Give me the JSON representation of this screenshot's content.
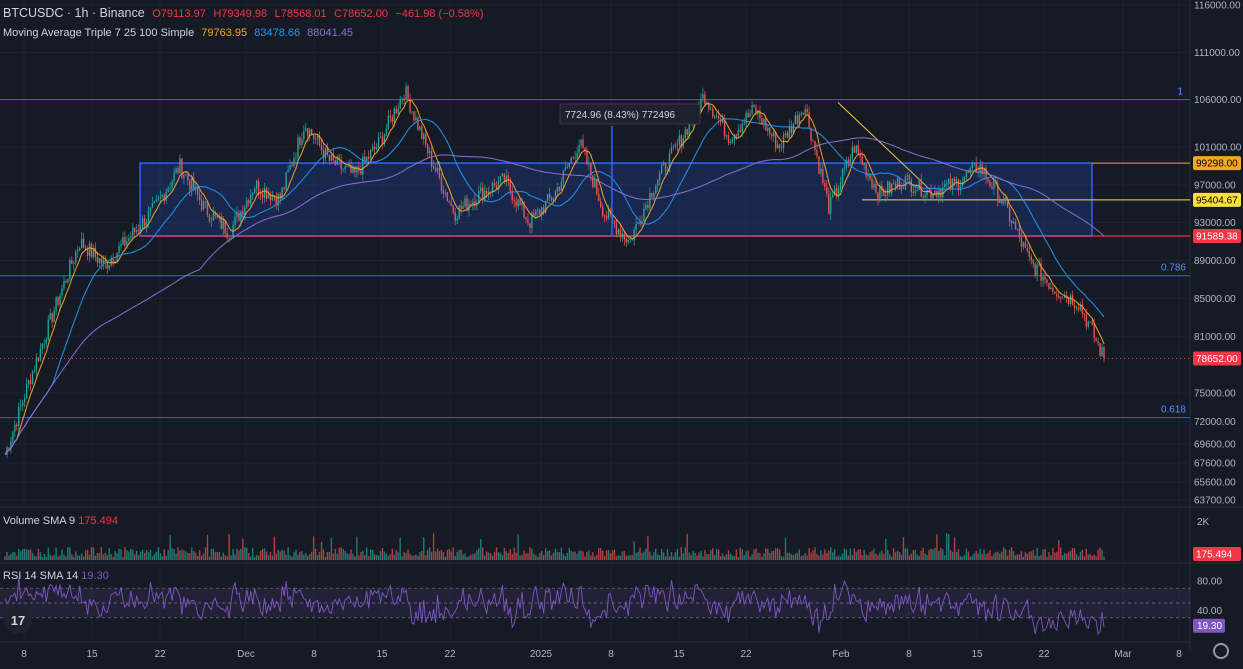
{
  "legend": {
    "symbol": "BTCUSDC · 1h · Binance",
    "open": "O79113.97",
    "high": "H79349.98",
    "low": "L78568.01",
    "close": "C78652.00",
    "change": "−461.98 (−0.58%)",
    "ma_label": "Moving Average Triple 7 25 100 Simple",
    "ma7": "79763.95",
    "ma25": "83478.66",
    "ma100": "88041.45"
  },
  "volume_pane": {
    "label": "Volume SMA 9",
    "value": "175.494",
    "axis_2k": "2K"
  },
  "rsi_pane": {
    "label": "RSI 14 SMA 14",
    "value": "19.30",
    "ticks": [
      "80.00",
      "40.00"
    ]
  },
  "colors": {
    "background": "#161a25",
    "up": "#26a69a",
    "down": "#ef5350",
    "ma7": "#f5a623",
    "ma25": "#2196f3",
    "ma100": "#8e6fd8",
    "hline": "#2962ff",
    "fib": "#2962ff",
    "rsi": "#7e57c2"
  },
  "measure_label": "7724.96 (8.43%) 772496",
  "fib_labels": {
    "l1": "1",
    "l786": "0.786",
    "l618": "0.618"
  },
  "price_badges": [
    {
      "value": "99298.00",
      "color": "#f5a623",
      "text_color": "#000"
    },
    {
      "value": "95404.67",
      "color": "#fbe03b",
      "text_color": "#000"
    },
    {
      "value": "91589.38",
      "color": "#f23645",
      "text_color": "#fff"
    },
    {
      "value": "78652.00",
      "color": "#f23645",
      "text_color": "#fff"
    }
  ],
  "volume_badge": "175.494",
  "rsi_badge": "19.30",
  "chart_data": {
    "type": "candlestick",
    "title": "BTCUSDC · 1h · Binance",
    "x_ticks": [
      "8",
      "15",
      "22",
      "Dec",
      "8",
      "15",
      "22",
      "2025",
      "8",
      "15",
      "22",
      "Feb",
      "8",
      "15",
      "22",
      "Mar",
      "8"
    ],
    "y_ticks": [
      "116000.00",
      "111000.00",
      "106000.00",
      "101000.00",
      "97000.00",
      "93000.00",
      "89000.00",
      "85000.00",
      "81000.00",
      "75000.00",
      "72000.00",
      "69600.00",
      "67600.00",
      "65600.00",
      "63700.00"
    ],
    "y_range": [
      63700,
      116000
    ],
    "horizontal_levels": [
      {
        "price": 106000,
        "label": "1"
      },
      {
        "price": 99298,
        "label": "99298.00"
      },
      {
        "price": 95404.67,
        "label": "95404.67"
      },
      {
        "price": 91589.38,
        "label": "91589.38"
      },
      {
        "price": 87400,
        "label": "0.786"
      },
      {
        "price": 72400,
        "label": "0.618"
      }
    ],
    "price_path": [
      {
        "date": "Nov 5",
        "price": 68500
      },
      {
        "date": "Nov 8",
        "price": 76500
      },
      {
        "date": "Nov 11",
        "price": 84000
      },
      {
        "date": "Nov 13",
        "price": 91000
      },
      {
        "date": "Nov 15",
        "price": 88500
      },
      {
        "date": "Nov 18",
        "price": 91500
      },
      {
        "date": "Nov 20",
        "price": 94500
      },
      {
        "date": "Nov 22",
        "price": 99000
      },
      {
        "date": "Nov 25",
        "price": 94500
      },
      {
        "date": "Nov 27",
        "price": 92000
      },
      {
        "date": "Nov 30",
        "price": 97000
      },
      {
        "date": "Dec 3",
        "price": 95500
      },
      {
        "date": "Dec 5",
        "price": 103500
      },
      {
        "date": "Dec 8",
        "price": 99500
      },
      {
        "date": "Dec 11",
        "price": 98000
      },
      {
        "date": "Dec 14",
        "price": 101500
      },
      {
        "date": "Dec 17",
        "price": 107000
      },
      {
        "date": "Dec 19",
        "price": 100000
      },
      {
        "date": "Dec 20",
        "price": 94000
      },
      {
        "date": "Dec 24",
        "price": 96000
      },
      {
        "date": "Dec 27",
        "price": 97500
      },
      {
        "date": "Dec 30",
        "price": 93000
      },
      {
        "date": "Jan 3",
        "price": 96000
      },
      {
        "date": "Jan 7",
        "price": 101500
      },
      {
        "date": "Jan 9",
        "price": 94000
      },
      {
        "date": "Jan 13",
        "price": 91000
      },
      {
        "date": "Jan 15",
        "price": 97000
      },
      {
        "date": "Jan 17",
        "price": 101500
      },
      {
        "date": "Jan 20",
        "price": 106500
      },
      {
        "date": "Jan 22",
        "price": 102000
      },
      {
        "date": "Jan 25",
        "price": 105000
      },
      {
        "date": "Jan 28",
        "price": 101000
      },
      {
        "date": "Jan 31",
        "price": 105500
      },
      {
        "date": "Feb 3",
        "price": 94500
      },
      {
        "date": "Feb 4",
        "price": 101000
      },
      {
        "date": "Feb 8",
        "price": 96000
      },
      {
        "date": "Feb 12",
        "price": 97500
      },
      {
        "date": "Feb 16",
        "price": 96200
      },
      {
        "date": "Feb 20",
        "price": 97000
      },
      {
        "date": "Feb 22",
        "price": 99000
      },
      {
        "date": "Feb 24",
        "price": 95000
      },
      {
        "date": "Feb 25",
        "price": 89000
      },
      {
        "date": "Feb 26",
        "price": 86000
      },
      {
        "date": "Feb 27",
        "price": 84500
      },
      {
        "date": "Feb 28",
        "price": 78652
      }
    ]
  }
}
